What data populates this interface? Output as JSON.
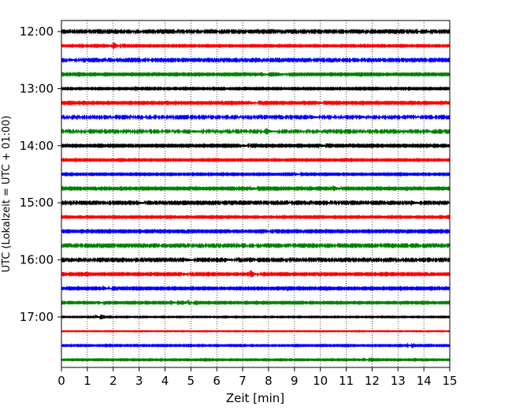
{
  "chart_data": {
    "type": "line",
    "xlabel": "Zeit  [min]",
    "ylabel": "UTC (Lokalzeit = UTC + 01:00)",
    "xlim": [
      0,
      15
    ],
    "x_ticks": [
      "0",
      "1",
      "2",
      "3",
      "4",
      "5",
      "6",
      "7",
      "8",
      "9",
      "10",
      "11",
      "12",
      "13",
      "14",
      "15"
    ],
    "y_ticks": [
      "12:00",
      "13:00",
      "14:00",
      "15:00",
      "16:00",
      "17:00"
    ],
    "grid": "vertical dotted at each minute",
    "row_colors": [
      "#000000",
      "#ff0000",
      "#0000ff",
      "#008000"
    ],
    "traces": [
      {
        "start": "12:00",
        "color": "#000000",
        "noise": 0.09,
        "events": []
      },
      {
        "start": "12:15",
        "color": "#ff0000",
        "noise": 0.06,
        "events": [
          {
            "t": 2.0,
            "amp": 0.55
          }
        ]
      },
      {
        "start": "12:30",
        "color": "#0000ff",
        "noise": 0.09,
        "events": [
          {
            "t": 0.3,
            "amp": 0.2
          }
        ]
      },
      {
        "start": "12:45",
        "color": "#008000",
        "noise": 0.07,
        "events": [
          {
            "t": 7.7,
            "amp": 0.4
          },
          {
            "t": 8.5,
            "amp": 0.2
          }
        ]
      },
      {
        "start": "13:00",
        "color": "#000000",
        "noise": 0.06,
        "events": []
      },
      {
        "start": "13:15",
        "color": "#ff0000",
        "noise": 0.07,
        "events": [
          {
            "t": 9.9,
            "amp": 0.25
          },
          {
            "t": 7.3,
            "amp": 0.2
          }
        ]
      },
      {
        "start": "13:30",
        "color": "#0000ff",
        "noise": 0.1,
        "events": [
          {
            "t": 9.6,
            "amp": 0.25
          },
          {
            "t": 11.5,
            "amp": 0.25
          }
        ]
      },
      {
        "start": "13:45",
        "color": "#008000",
        "noise": 0.1,
        "events": [
          {
            "t": 7.9,
            "amp": 0.45
          },
          {
            "t": 5.1,
            "amp": 0.2
          }
        ]
      },
      {
        "start": "14:00",
        "color": "#000000",
        "noise": 0.07,
        "events": [
          {
            "t": 10.0,
            "amp": 0.25
          },
          {
            "t": 7.0,
            "amp": 0.2
          }
        ]
      },
      {
        "start": "14:15",
        "color": "#ff0000",
        "noise": 0.06,
        "events": []
      },
      {
        "start": "14:30",
        "color": "#0000ff",
        "noise": 0.06,
        "events": [
          {
            "t": 9.0,
            "amp": 0.25
          }
        ]
      },
      {
        "start": "14:45",
        "color": "#008000",
        "noise": 0.07,
        "events": [
          {
            "t": 10.5,
            "amp": 0.45
          },
          {
            "t": 7.4,
            "amp": 0.2
          }
        ]
      },
      {
        "start": "15:00",
        "color": "#000000",
        "noise": 0.09,
        "events": [
          {
            "t": 2.9,
            "amp": 0.35
          },
          {
            "t": 13.5,
            "amp": 0.35
          }
        ]
      },
      {
        "start": "15:15",
        "color": "#ff0000",
        "noise": 0.06,
        "events": []
      },
      {
        "start": "15:30",
        "color": "#0000ff",
        "noise": 0.07,
        "events": [
          {
            "t": 7.9,
            "amp": 0.2
          }
        ]
      },
      {
        "start": "15:45",
        "color": "#008000",
        "noise": 0.09,
        "events": []
      },
      {
        "start": "16:00",
        "color": "#000000",
        "noise": 0.09,
        "events": [
          {
            "t": 6.3,
            "amp": 0.3
          },
          {
            "t": 4.8,
            "amp": 0.25
          }
        ]
      },
      {
        "start": "16:15",
        "color": "#ff0000",
        "noise": 0.07,
        "events": [
          {
            "t": 7.3,
            "amp": 0.6
          },
          {
            "t": 4.7,
            "amp": 0.2
          }
        ]
      },
      {
        "start": "16:30",
        "color": "#0000ff",
        "noise": 0.07,
        "events": [
          {
            "t": 1.6,
            "amp": 0.3
          }
        ]
      },
      {
        "start": "16:45",
        "color": "#008000",
        "noise": 0.06,
        "events": [
          {
            "t": 4.2,
            "amp": 0.4
          },
          {
            "t": 4.9,
            "amp": 0.35
          },
          {
            "t": 1.4,
            "amp": 0.25
          }
        ]
      },
      {
        "start": "17:00",
        "color": "#000000",
        "noise": 0.04,
        "events": [
          {
            "t": 1.3,
            "amp": 0.3
          }
        ]
      },
      {
        "start": "17:15",
        "color": "#ff0000",
        "noise": 0.03,
        "events": []
      },
      {
        "start": "17:30",
        "color": "#0000ff",
        "noise": 0.05,
        "events": [
          {
            "t": 13.4,
            "amp": 0.15
          }
        ]
      },
      {
        "start": "17:45",
        "color": "#008000",
        "noise": 0.05,
        "events": [
          {
            "t": 11.7,
            "amp": 0.2
          }
        ]
      }
    ]
  }
}
